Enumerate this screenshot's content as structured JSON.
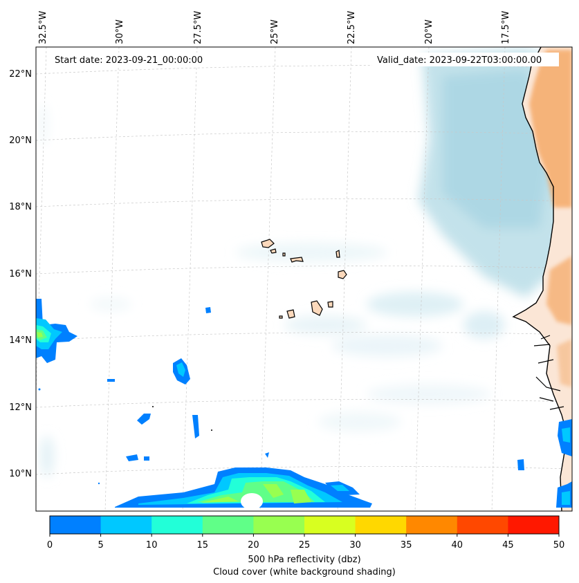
{
  "map": {
    "start_label": "Start date: 2023-09-21_00:00:00",
    "valid_label": "Valid_date: 2023-09-22T03:00:00.00",
    "lon_labels": [
      "32.5°W",
      "30°W",
      "27.5°W",
      "25°W",
      "22.5°W",
      "20°W",
      "17.5°W"
    ],
    "lat_labels": [
      "22°N",
      "20°N",
      "18°N",
      "16°N",
      "14°N",
      "12°N",
      "10°N"
    ]
  },
  "colorbar": {
    "ticks": [
      "0",
      "5",
      "10",
      "15",
      "20",
      "25",
      "30",
      "35",
      "40",
      "45",
      "50"
    ],
    "colors": [
      "#0080ff",
      "#00c8ff",
      "#22ffd8",
      "#60ff88",
      "#98ff50",
      "#d8ff20",
      "#ffd800",
      "#ff8800",
      "#ff4800",
      "#ff1800"
    ],
    "label_line1": "500 hPa reflectivity (dbz)",
    "label_line2": "Cloud cover (white background shading)"
  }
}
